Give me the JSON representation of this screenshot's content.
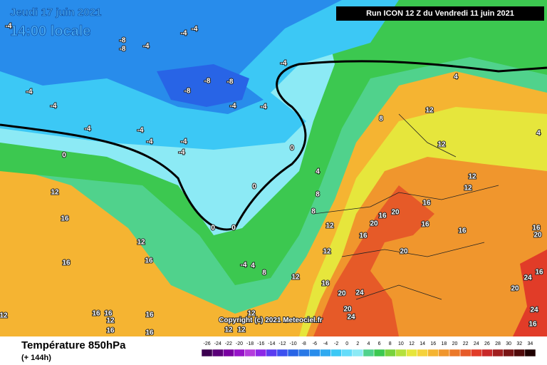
{
  "header": {
    "date": "Jeudi 17 juin 2021",
    "time": "14:00 locale",
    "run": "Run ICON 12 Z du Vendredi 11 juin 2021"
  },
  "copyright": "Copyright (c) 2021 Meteociel.fr",
  "footer": {
    "title": "Température 850hPa",
    "lead": "(+ 144h)"
  },
  "contour_labels": [
    -8,
    -8,
    -4,
    -4,
    -4,
    -4,
    -4,
    -4,
    -4,
    -8,
    -8,
    -8,
    -4,
    -4,
    -4,
    -4,
    -4,
    -4,
    -4,
    0,
    0,
    0,
    0,
    0,
    -4,
    4,
    8,
    4,
    8,
    8,
    4,
    8,
    12,
    12,
    12,
    12,
    4,
    12,
    16,
    12,
    16,
    16,
    12,
    12,
    16,
    20,
    16,
    20,
    20,
    16,
    16,
    16,
    16,
    20,
    24,
    20,
    24,
    12,
    12,
    16,
    16,
    12,
    12,
    16,
    16,
    12,
    16,
    12,
    16,
    20,
    24,
    16,
    20,
    24,
    16
  ],
  "color_scale": [
    {
      "value": -26,
      "color": "#3c0050"
    },
    {
      "value": -24,
      "color": "#5a0078"
    },
    {
      "value": -22,
      "color": "#7800a0"
    },
    {
      "value": -20,
      "color": "#9614c8"
    },
    {
      "value": -18,
      "color": "#b43cdc"
    },
    {
      "value": -16,
      "color": "#8c28e6"
    },
    {
      "value": -14,
      "color": "#5a3cf0"
    },
    {
      "value": -12,
      "color": "#3c50f0"
    },
    {
      "value": -10,
      "color": "#2864e6"
    },
    {
      "value": -8,
      "color": "#2878e6"
    },
    {
      "value": -6,
      "color": "#288ceb"
    },
    {
      "value": -4,
      "color": "#30aaf0"
    },
    {
      "value": -2,
      "color": "#3cc8f5"
    },
    {
      "value": 0,
      "color": "#64dcfa"
    },
    {
      "value": 2,
      "color": "#8ceaf5"
    },
    {
      "value": 4,
      "color": "#50d28c"
    },
    {
      "value": 6,
      "color": "#3cc850"
    },
    {
      "value": 8,
      "color": "#78d23c"
    },
    {
      "value": 10,
      "color": "#b4e13c"
    },
    {
      "value": 12,
      "color": "#e6e63c"
    },
    {
      "value": 14,
      "color": "#f5d23c"
    },
    {
      "value": 16,
      "color": "#f5b432"
    },
    {
      "value": 18,
      "color": "#f0962d"
    },
    {
      "value": 20,
      "color": "#eb7828"
    },
    {
      "value": 22,
      "color": "#e65a28"
    },
    {
      "value": 24,
      "color": "#e13c28"
    },
    {
      "value": 26,
      "color": "#c82828"
    },
    {
      "value": 28,
      "color": "#a01e1e"
    },
    {
      "value": 30,
      "color": "#781414"
    },
    {
      "value": 32,
      "color": "#500a0a"
    },
    {
      "value": 34,
      "color": "#1e0000"
    }
  ]
}
